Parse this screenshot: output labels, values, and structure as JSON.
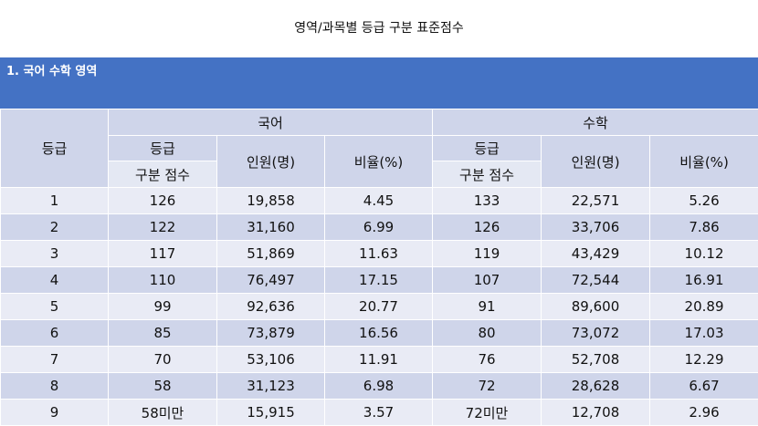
{
  "title": "영역/과목별 등급 구분 표준점수",
  "section": "1. 국어 수학 영역",
  "headers": {
    "grade": "등급",
    "korean": "국어",
    "math": "수학",
    "grade_top": "등급",
    "grade_bottom": "구분 점수",
    "count": "인원(명)",
    "ratio": "비율(%)"
  },
  "rows": [
    {
      "grade": "1",
      "k_score": "126",
      "k_count": "19,858",
      "k_ratio": "4.45",
      "m_score": "133",
      "m_count": "22,571",
      "m_ratio": "5.26"
    },
    {
      "grade": "2",
      "k_score": "122",
      "k_count": "31,160",
      "k_ratio": "6.99",
      "m_score": "126",
      "m_count": "33,706",
      "m_ratio": "7.86"
    },
    {
      "grade": "3",
      "k_score": "117",
      "k_count": "51,869",
      "k_ratio": "11.63",
      "m_score": "119",
      "m_count": "43,429",
      "m_ratio": "10.12"
    },
    {
      "grade": "4",
      "k_score": "110",
      "k_count": "76,497",
      "k_ratio": "17.15",
      "m_score": "107",
      "m_count": "72,544",
      "m_ratio": "16.91"
    },
    {
      "grade": "5",
      "k_score": "99",
      "k_count": "92,636",
      "k_ratio": "20.77",
      "m_score": "91",
      "m_count": "89,600",
      "m_ratio": "20.89"
    },
    {
      "grade": "6",
      "k_score": "85",
      "k_count": "73,879",
      "k_ratio": "16.56",
      "m_score": "80",
      "m_count": "73,072",
      "m_ratio": "17.03"
    },
    {
      "grade": "7",
      "k_score": "70",
      "k_count": "53,106",
      "k_ratio": "11.91",
      "m_score": "76",
      "m_count": "52,708",
      "m_ratio": "12.29"
    },
    {
      "grade": "8",
      "k_score": "58",
      "k_count": "31,123",
      "k_ratio": "6.98",
      "m_score": "72",
      "m_count": "28,628",
      "m_ratio": "6.67"
    },
    {
      "grade": "9",
      "k_score": "58미만",
      "k_count": "15,915",
      "k_ratio": "3.57",
      "m_score": "72미만",
      "m_count": "12,708",
      "m_ratio": "2.96"
    }
  ]
}
